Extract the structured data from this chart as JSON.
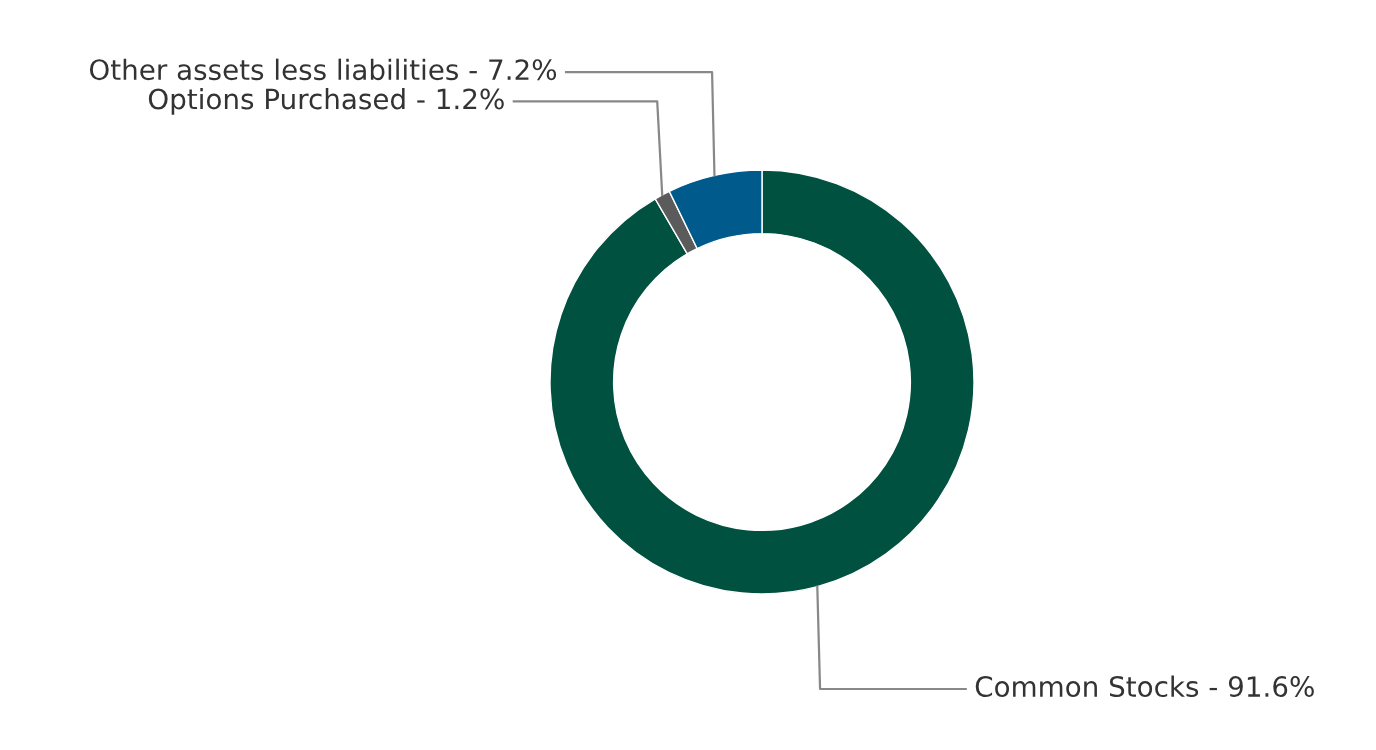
{
  "chart_data": {
    "type": "donut",
    "categories": [
      "Common Stocks - 91.6%",
      "Options Purchased - 1.2%",
      "Other assets less liabilities - 7.2%"
    ],
    "values": [
      91.6,
      1.2,
      7.2
    ],
    "colors": [
      "#00513f",
      "#5b5b5b",
      "#005a8c"
    ],
    "legend": false
  }
}
